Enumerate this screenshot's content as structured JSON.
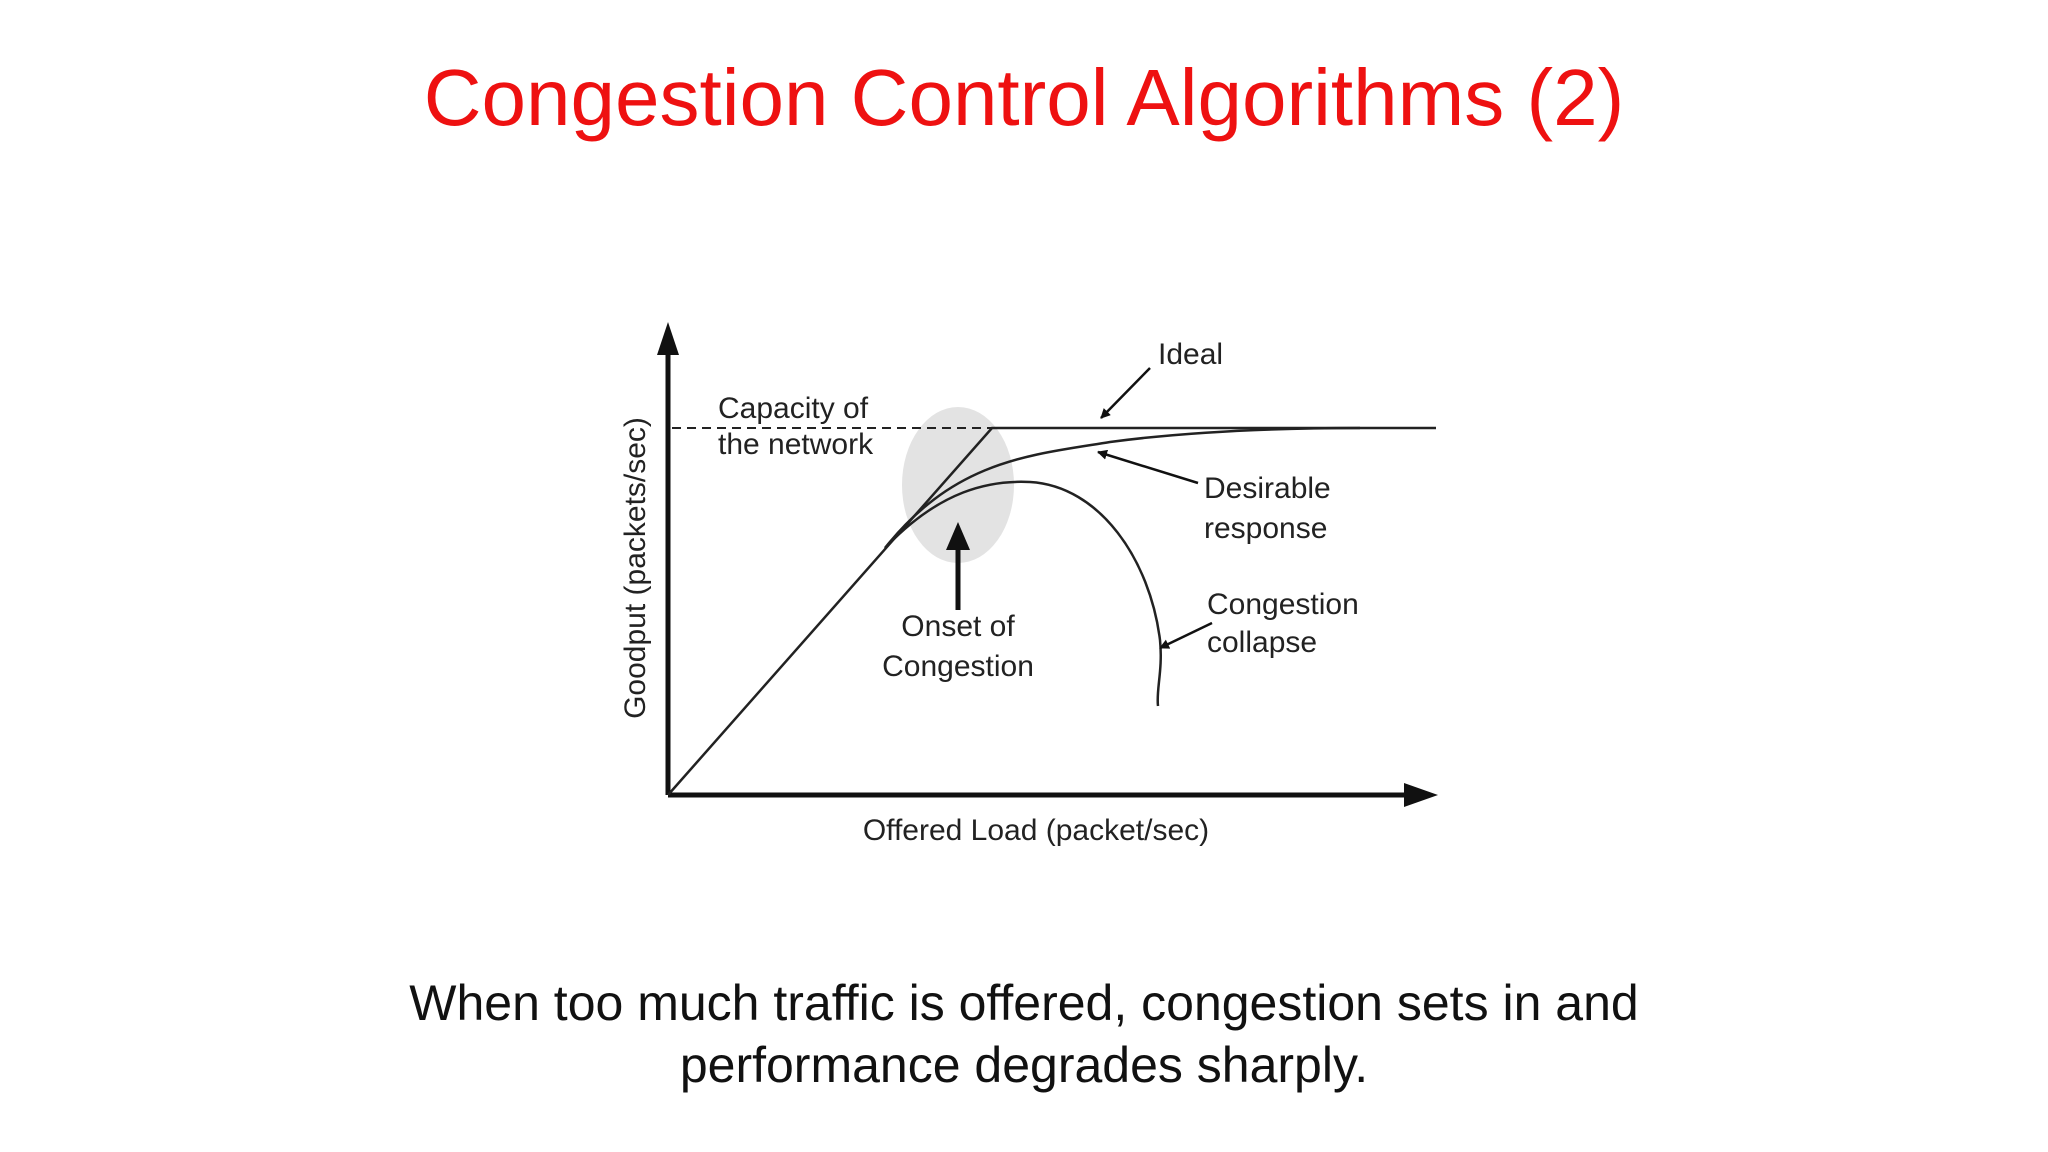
{
  "slide": {
    "title": "Congestion Control Algorithms (2)",
    "title_color": "#ee1111",
    "caption_lines": [
      "When too much traffic is offered, congestion sets in and",
      "performance degrades sharply."
    ]
  },
  "diagram": {
    "y_axis_label": "Goodput (packets/sec)",
    "x_axis_label": "Offered Load (packet/sec)",
    "capacity_label_lines": [
      "Capacity of",
      "the network"
    ],
    "ideal_label": "Ideal",
    "desirable_label_lines": [
      "Desirable",
      "response"
    ],
    "collapse_label_lines": [
      "Congestion",
      "collapse"
    ],
    "onset_label_lines": [
      "Onset of",
      "Congestion"
    ],
    "highlight_color": "#e3e3e3"
  }
}
